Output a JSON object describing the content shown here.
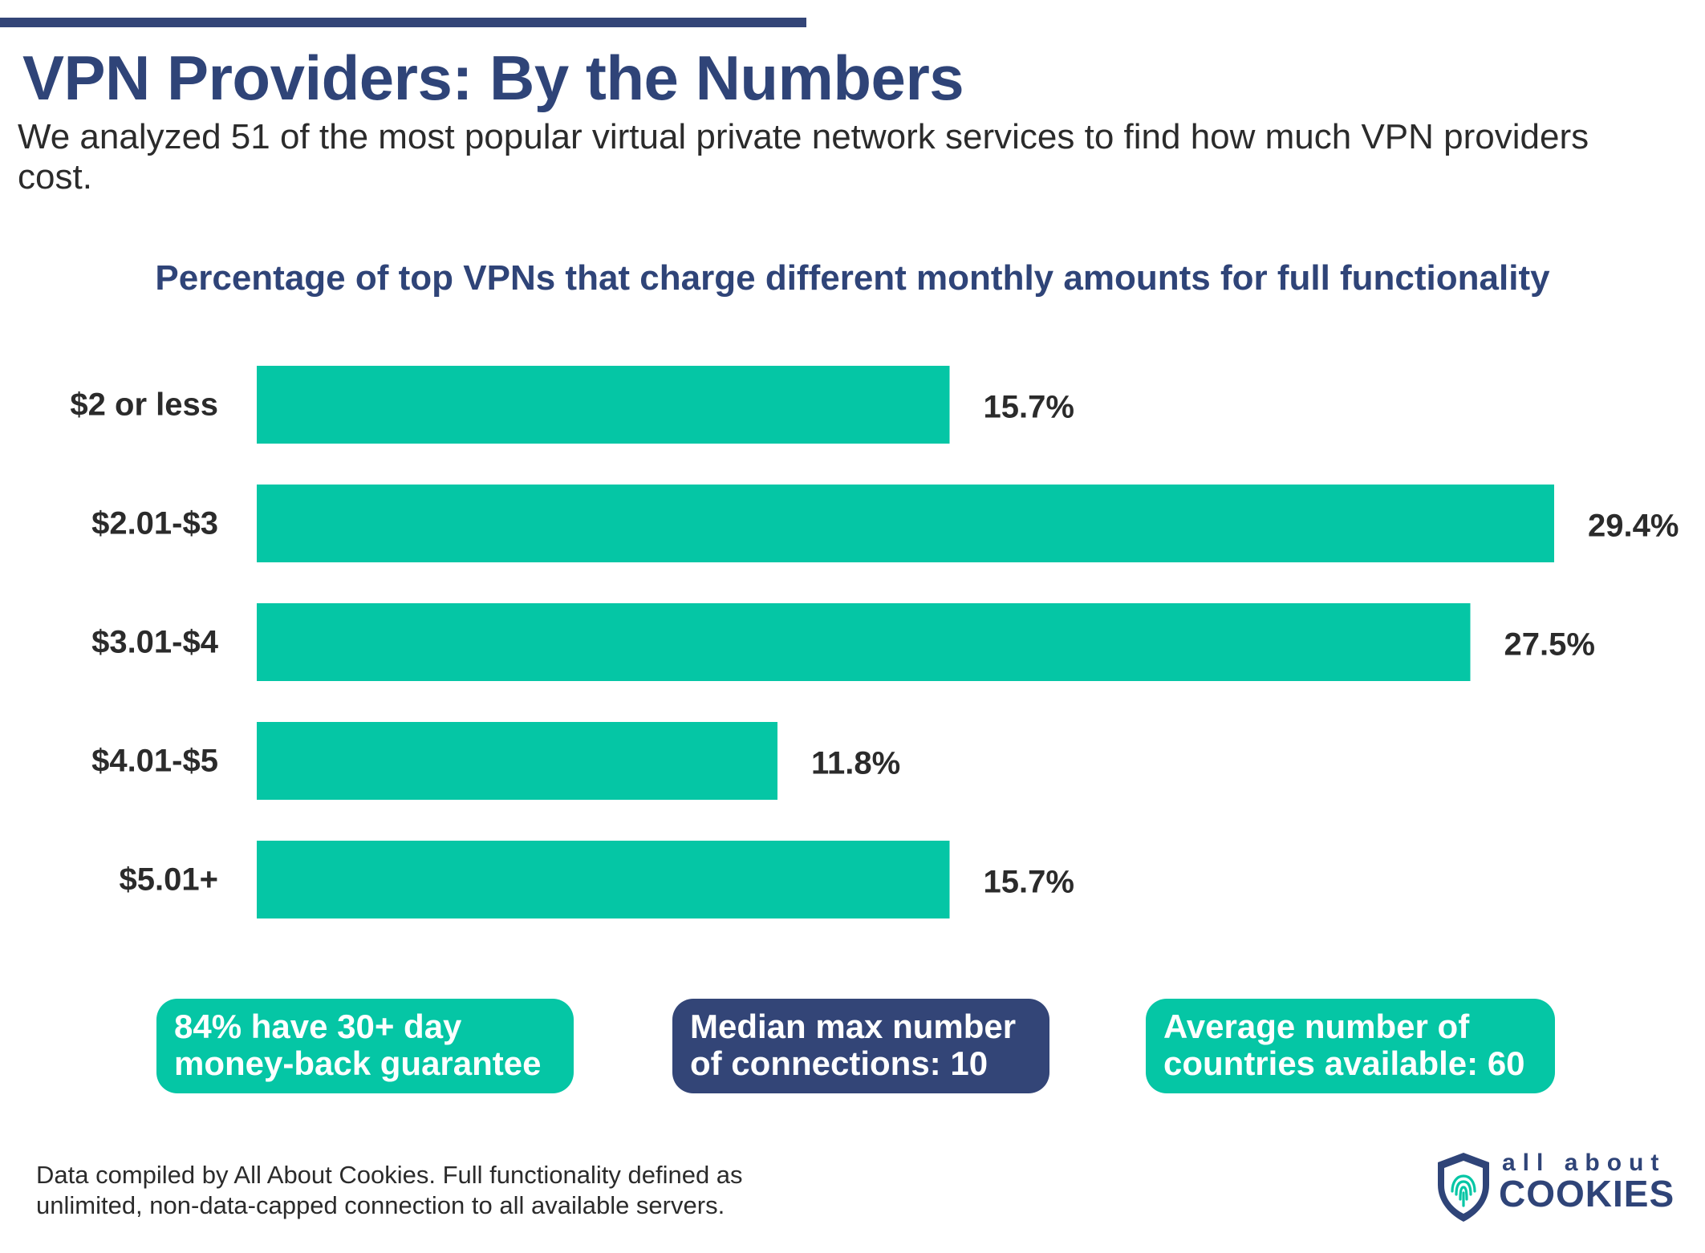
{
  "header": {
    "title": "VPN Providers: By the Numbers",
    "subtitle": "We analyzed 51 of the most popular virtual private network services to find how much VPN providers cost."
  },
  "chart_data": {
    "type": "bar",
    "orientation": "horizontal",
    "title": "Percentage of top VPNs that charge different monthly amounts for full functionality",
    "categories": [
      "$2 or less",
      "$2.01-$3",
      "$3.01-$4",
      "$4.01-$5",
      "$5.01+"
    ],
    "values": [
      15.7,
      29.4,
      27.5,
      11.8,
      15.7
    ],
    "value_labels": [
      "15.7%",
      "29.4%",
      "27.5%",
      "11.8%",
      "15.7%"
    ],
    "unit": "%",
    "xlim": [
      0,
      29.4
    ],
    "grid": false,
    "legend": "none",
    "bar_color": "#05c6a5"
  },
  "stats": [
    {
      "line1": "84% have 30+ day",
      "line2": "money-back guarantee",
      "color": "#05c6a5"
    },
    {
      "line1": "Median max number",
      "line2": "of connections: 10",
      "color": "#334577"
    },
    {
      "line1": "Average number of",
      "line2": "countries available: 60",
      "color": "#05c6a5"
    }
  ],
  "footer": {
    "note_line1": "Data compiled by All About Cookies. Full functionality defined as",
    "note_line2": "unlimited, non-data-capped connection to all available servers.",
    "logo_small": "all about",
    "logo_big": "COOKIES",
    "logo_icon": "shield-fingerprint-icon"
  }
}
